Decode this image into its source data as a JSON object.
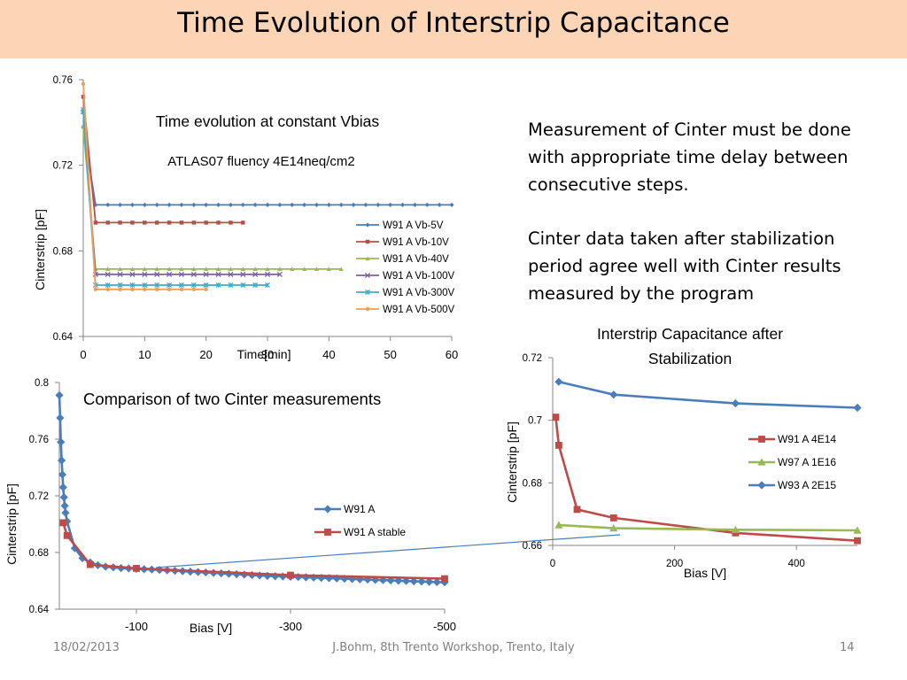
{
  "slide": {
    "title": "Time Evolution of Interstrip Capacitance",
    "paragraph1": "Measurement of Cinter must be done with appropriate time delay between consecutive steps.",
    "paragraph2": "Cinter data taken after stabilization period agree well with Cinter results measured by the program",
    "footer_date": "18/02/2013",
    "footer_center": "J.Bohm, 8th Trento Workshop, Trento, Italy",
    "footer_page": "14"
  },
  "chart_data": [
    {
      "id": "time",
      "type": "line",
      "title": "Time evolution at constant Vbias",
      "subtitle": "ATLAS07 fluency 4E14neq/cm2",
      "xlabel": "Time[min]",
      "ylabel": "Cinterstrip [pF]",
      "xlim": [
        0,
        60
      ],
      "ylim": [
        0.64,
        0.76
      ],
      "xticks": [
        0,
        10,
        20,
        30,
        40,
        50,
        60
      ],
      "yticks": [
        0.64,
        0.68,
        0.72,
        0.76
      ],
      "legend": "right",
      "grid": false,
      "series": [
        {
          "name": "W91 A Vb-5V",
          "color": "#4a7ebb",
          "marker": "diamond",
          "x_start": 2,
          "x_end": 60,
          "x_step": 2,
          "first": [
            [
              0,
              0.738
            ]
          ],
          "value": 0.7015
        },
        {
          "name": "W91 A Vb-10V",
          "color": "#be4b48",
          "marker": "square",
          "x_start": 2,
          "x_end": 26,
          "x_step": 2,
          "first": [
            [
              0,
              0.752
            ]
          ],
          "value": 0.6932
        },
        {
          "name": "W91 A Vb-40V",
          "color": "#98b954",
          "marker": "triangle",
          "x_start": 2,
          "x_end": 42,
          "x_step": 2,
          "first": [
            [
              0,
              0.738
            ]
          ],
          "value": 0.6715
        },
        {
          "name": "W91 A Vb-100V",
          "color": "#7d60a0",
          "marker": "x",
          "x_start": 2,
          "x_end": 32,
          "x_step": 2,
          "first": [
            [
              0,
              0.745
            ]
          ],
          "value": 0.669
        },
        {
          "name": "W91 A Vb-300V",
          "color": "#46aac5",
          "marker": "star",
          "x_start": 2,
          "x_end": 30,
          "x_step": 2,
          "first": [
            [
              0,
              0.746
            ]
          ],
          "value": 0.664
        },
        {
          "name": "W91 A Vb-500V",
          "color": "#f59d56",
          "marker": "circle",
          "x_start": 2,
          "x_end": 20,
          "x_step": 2,
          "first": [
            [
              0,
              0.758
            ]
          ],
          "value": 0.662
        }
      ]
    },
    {
      "id": "compare",
      "type": "line",
      "title": "Comparison of two Cinter measurements",
      "xlabel": "Bias [V]",
      "ylabel": "Cinterstrip [pF]",
      "xlim": [
        0,
        -500
      ],
      "ylim": [
        0.64,
        0.8
      ],
      "xticks": [
        -100,
        -300,
        -500
      ],
      "yticks": [
        0.64,
        0.68,
        0.72,
        0.76,
        0.8
      ],
      "legend": "right",
      "grid": false,
      "series": [
        {
          "name": "W91 A",
          "color": "#4a7ebb",
          "marker": "diamond",
          "x": [
            0,
            -1,
            -2,
            -3,
            -4,
            -5,
            -6,
            -7,
            -8,
            -10,
            -20,
            -30,
            -40,
            -50,
            -60,
            -70,
            -80,
            -90,
            -100,
            -110,
            -120,
            -130,
            -140,
            -150,
            -160,
            -170,
            -180,
            -190,
            -200,
            -210,
            -220,
            -230,
            -240,
            -250,
            -260,
            -270,
            -280,
            -290,
            -300,
            -310,
            -320,
            -330,
            -340,
            -350,
            -360,
            -370,
            -380,
            -390,
            -400,
            -410,
            -420,
            -430,
            -440,
            -450,
            -460,
            -470,
            -480,
            -490,
            -500
          ],
          "y": [
            0.791,
            0.775,
            0.758,
            0.745,
            0.735,
            0.726,
            0.719,
            0.713,
            0.708,
            0.702,
            0.683,
            0.676,
            0.673,
            0.671,
            0.67,
            0.6695,
            0.669,
            0.6688,
            0.6685,
            0.6682,
            0.668,
            0.6677,
            0.6674,
            0.6671,
            0.6668,
            0.6665,
            0.6662,
            0.6659,
            0.6656,
            0.6653,
            0.665,
            0.6647,
            0.6644,
            0.6641,
            0.6638,
            0.6635,
            0.6633,
            0.6631,
            0.6629,
            0.6627,
            0.6625,
            0.6623,
            0.6621,
            0.6619,
            0.6617,
            0.6615,
            0.6613,
            0.6611,
            0.6609,
            0.6607,
            0.6605,
            0.6603,
            0.6601,
            0.6599,
            0.6597,
            0.6595,
            0.6593,
            0.6591,
            0.659
          ]
        },
        {
          "name": "W91 A stable",
          "color": "#be4b48",
          "marker": "square",
          "x": [
            -5,
            -10,
            -40,
            -100,
            -300,
            -500
          ],
          "y": [
            0.701,
            0.692,
            0.6715,
            0.6688,
            0.664,
            0.6615
          ]
        }
      ]
    },
    {
      "id": "stab",
      "type": "line",
      "title": "Interstrip Capacitance after Stabilization",
      "xlabel": "Bias [V]",
      "ylabel": "Cinterstrip [pF]",
      "xlim": [
        0,
        500
      ],
      "ylim": [
        0.66,
        0.72
      ],
      "xticks": [
        0,
        200,
        400
      ],
      "yticks": [
        0.66,
        0.68,
        0.7,
        0.72
      ],
      "legend": "right",
      "grid": false,
      "series": [
        {
          "name": "W91 A 4E14",
          "color": "#be4b48",
          "marker": "square",
          "x": [
            5,
            10,
            40,
            100,
            300,
            500
          ],
          "y": [
            0.701,
            0.692,
            0.6715,
            0.6688,
            0.664,
            0.6615
          ]
        },
        {
          "name": "W97 A 1E16",
          "color": "#98b954",
          "marker": "triangle",
          "x": [
            10,
            100,
            300,
            500
          ],
          "y": [
            0.6665,
            0.6655,
            0.665,
            0.6648
          ]
        },
        {
          "name": "W93 A 2E15",
          "color": "#4a7ebb",
          "marker": "diamond",
          "x": [
            10,
            100,
            300,
            500
          ],
          "y": [
            0.7123,
            0.7082,
            0.7054,
            0.704
          ]
        }
      ]
    }
  ]
}
